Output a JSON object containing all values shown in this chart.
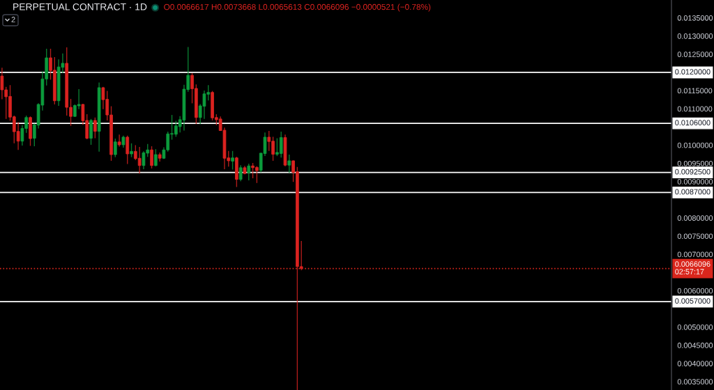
{
  "chart_data": {
    "type": "candlestick",
    "title": "PERPETUAL CONTRACT · 1D",
    "subtitle": "O0.0066617 H0.0073668 L0.0065613 C0.0066096 −0.0000521 (−0.78%)",
    "annotations": [
      "2"
    ],
    "categories": [
      null,
      null,
      null,
      null,
      null,
      null,
      null,
      null,
      null,
      null,
      null,
      null,
      null,
      null,
      null,
      null,
      null,
      null,
      null,
      null,
      null,
      null,
      null,
      null,
      null,
      null,
      null,
      null,
      null,
      null,
      null,
      null,
      null,
      null,
      null,
      null,
      null,
      null,
      null,
      null,
      null,
      null,
      null,
      null,
      null,
      null,
      null,
      null,
      null,
      null,
      null,
      null,
      null,
      null,
      null,
      null,
      null,
      null,
      null,
      null,
      null,
      null,
      null,
      null,
      null,
      null,
      null,
      null,
      null,
      null,
      null,
      null,
      null,
      null,
      null,
      null,
      null,
      null,
      null,
      null,
      null,
      null,
      null,
      null,
      null,
      null,
      null,
      null,
      null,
      null,
      null,
      null,
      null,
      null,
      null,
      null,
      null,
      null,
      null,
      null,
      null,
      null,
      null,
      null,
      null,
      null,
      null,
      null,
      null,
      null,
      null,
      null,
      null,
      null,
      null,
      null,
      null,
      null,
      null,
      null,
      null,
      null,
      null,
      null,
      null,
      null,
      null,
      null,
      null,
      null,
      null,
      null,
      null,
      null,
      null,
      null,
      null,
      null,
      null,
      null,
      null,
      null,
      null,
      null,
      null,
      null,
      null,
      null,
      null,
      null,
      null,
      null,
      null,
      null,
      null,
      null,
      null,
      null,
      null,
      null,
      null,
      null,
      null,
      null,
      null,
      null
    ],
    "ohlc": [
      [
        0.0119,
        0.01213,
        0.01126,
        0.01152
      ],
      [
        0.01152,
        0.0116,
        0.01072,
        0.01133
      ],
      [
        0.01134,
        0.01165,
        0.01067,
        0.01077
      ],
      [
        0.01078,
        0.01081,
        0.01005,
        0.01037
      ],
      [
        0.01038,
        0.01063,
        0.00987,
        0.01011
      ],
      [
        0.01011,
        0.01055,
        0.00999,
        0.01046
      ],
      [
        0.01046,
        0.01081,
        0.01034,
        0.01076
      ],
      [
        0.01076,
        0.01079,
        0.00998,
        0.01018
      ],
      [
        0.01019,
        0.01059,
        0.00997,
        0.01056
      ],
      [
        0.01055,
        0.01115,
        0.01046,
        0.01112
      ],
      [
        0.0111,
        0.01203,
        0.01095,
        0.01182
      ],
      [
        0.01182,
        0.01265,
        0.01164,
        0.0124
      ],
      [
        0.0124,
        0.01265,
        0.0118,
        0.01205
      ],
      [
        0.01206,
        0.01242,
        0.01112,
        0.01122
      ],
      [
        0.01122,
        0.01236,
        0.01108,
        0.01215
      ],
      [
        0.01214,
        0.01252,
        0.01198,
        0.01225
      ],
      [
        0.01225,
        0.01269,
        0.01081,
        0.01104
      ],
      [
        0.01104,
        0.01127,
        0.01053,
        0.01079
      ],
      [
        0.01079,
        0.01112,
        0.01078,
        0.01109
      ],
      [
        0.01108,
        0.01154,
        0.01099,
        0.01112
      ],
      [
        0.01112,
        0.01114,
        0.01056,
        0.01067
      ],
      [
        0.01068,
        0.01085,
        0.01016,
        0.01019
      ],
      [
        0.01019,
        0.01072,
        0.01001,
        0.01068
      ],
      [
        0.01068,
        0.01076,
        0.01019,
        0.01038
      ],
      [
        0.01038,
        0.01172,
        0.00982,
        0.01158
      ],
      [
        0.01158,
        0.0116,
        0.01099,
        0.01125
      ],
      [
        0.01126,
        0.01149,
        0.01068,
        0.01083
      ],
      [
        0.01083,
        0.01107,
        0.00957,
        0.00974
      ],
      [
        0.00974,
        0.01018,
        0.00967,
        0.01009
      ],
      [
        0.01009,
        0.01029,
        0.00996,
        0.01001
      ],
      [
        0.01001,
        0.01026,
        0.00993,
        0.01022
      ],
      [
        0.01022,
        0.01026,
        0.00948,
        0.00976
      ],
      [
        0.00976,
        0.01005,
        0.00967,
        0.00983
      ],
      [
        0.00983,
        0.01,
        0.00959,
        0.00963
      ],
      [
        0.00964,
        0.00995,
        0.00922,
        0.00944
      ],
      [
        0.00944,
        0.00983,
        0.00934,
        0.00979
      ],
      [
        0.00978,
        0.01003,
        0.00968,
        0.00987
      ],
      [
        0.00987,
        0.00997,
        0.00936,
        0.00944
      ],
      [
        0.00944,
        0.00989,
        0.00942,
        0.00974
      ],
      [
        0.00974,
        0.0098,
        0.00955,
        0.00964
      ],
      [
        0.00964,
        0.00994,
        0.00962,
        0.00987
      ],
      [
        0.00987,
        0.01037,
        0.00982,
        0.01031
      ],
      [
        0.0103,
        0.01083,
        0.01015,
        0.01032
      ],
      [
        0.0103,
        0.01067,
        0.01023,
        0.01053
      ],
      [
        0.01051,
        0.0108,
        0.01035,
        0.0107
      ],
      [
        0.01069,
        0.01166,
        0.0104,
        0.01154
      ],
      [
        0.01153,
        0.0127,
        0.01147,
        0.01192
      ],
      [
        0.01192,
        0.01198,
        0.01115,
        0.01155
      ],
      [
        0.01156,
        0.01167,
        0.01058,
        0.01076
      ],
      [
        0.01076,
        0.01113,
        0.01058,
        0.01108
      ],
      [
        0.01107,
        0.0115,
        0.01072,
        0.01141
      ],
      [
        0.0114,
        0.01165,
        0.01123,
        0.01145
      ],
      [
        0.01145,
        0.01149,
        0.01068,
        0.01075
      ],
      [
        0.01076,
        0.01085,
        0.01055,
        0.0107
      ],
      [
        0.01072,
        0.01079,
        0.01039,
        0.0104
      ],
      [
        0.01041,
        0.01048,
        0.00934,
        0.00964
      ],
      [
        0.00965,
        0.00984,
        0.00941,
        0.00957
      ],
      [
        0.00956,
        0.00984,
        0.00933,
        0.00965
      ],
      [
        0.00965,
        0.00968,
        0.00885,
        0.00906
      ],
      [
        0.00906,
        0.00945,
        0.00901,
        0.00938
      ],
      [
        0.00938,
        0.00943,
        0.0092,
        0.00922
      ],
      [
        0.00924,
        0.00949,
        0.00903,
        0.00943
      ],
      [
        0.00943,
        0.00951,
        0.00909,
        0.00938
      ],
      [
        0.00939,
        0.00942,
        0.00896,
        0.0093
      ],
      [
        0.00931,
        0.00979,
        0.00925,
        0.00978
      ],
      [
        0.00977,
        0.01035,
        0.0097,
        0.01022
      ],
      [
        0.01022,
        0.01039,
        0.00984,
        0.0101
      ],
      [
        0.01011,
        0.01023,
        0.00957,
        0.00975
      ],
      [
        0.00975,
        0.01019,
        0.0097,
        0.0098
      ],
      [
        0.00977,
        0.01037,
        0.00966,
        0.01021
      ],
      [
        0.01021,
        0.01029,
        0.00942,
        0.00945
      ],
      [
        0.00945,
        0.00974,
        0.00924,
        0.00957
      ],
      [
        0.00957,
        0.00958,
        0.00899,
        0.00925
      ],
      [
        0.00927,
        0.0094,
        0.00327,
        0.0066617
      ],
      [
        0.0066617,
        0.0073668,
        0.0065613,
        0.0066096
      ],
      null,
      null,
      null,
      null,
      null,
      null,
      null,
      null,
      null,
      null,
      null,
      null,
      null,
      null,
      null,
      null,
      null,
      null,
      null,
      null,
      null,
      null,
      null,
      null,
      null,
      null,
      null,
      null,
      null,
      null,
      null,
      null,
      null,
      null,
      null,
      null,
      null,
      null,
      null,
      null,
      null,
      null,
      null,
      null,
      null,
      null,
      null,
      null,
      null,
      null,
      null,
      null,
      null,
      null,
      null,
      null,
      null,
      null,
      null,
      null,
      null,
      null,
      null,
      null,
      null,
      null,
      null,
      null,
      null,
      null,
      null,
      null,
      null,
      null,
      null,
      null,
      null,
      null,
      null,
      null,
      null,
      null,
      null,
      null,
      null,
      null,
      null,
      null,
      null,
      null,
      null
    ],
    "colors": [
      "#db2320",
      "#db2320",
      "#db2320",
      "#db2320",
      "#db2320",
      "#0c9b3c",
      "#0c9b3c",
      "#db2320",
      "#0c9b3c",
      "#0c9b3c",
      "#0c9b3c",
      "#0c9b3c",
      "#db2320",
      "#db2320",
      "#0c9b3c",
      "#0c9b3c",
      "#db2320",
      "#db2320",
      "#0c9b3c",
      "#0c9b3c",
      "#db2320",
      "#db2320",
      "#0c9b3c",
      "#db2320",
      "#0c9b3c",
      "#db2320",
      "#db2320",
      "#db2320",
      "#0c9b3c",
      "#db2320",
      "#0c9b3c",
      "#db2320",
      "#0c9b3c",
      "#db2320",
      "#db2320",
      "#0c9b3c",
      "#0c9b3c",
      "#db2320",
      "#0c9b3c",
      "#db2320",
      "#0c9b3c",
      "#0c9b3c",
      "#0c9b3c",
      "#0c9b3c",
      "#0c9b3c",
      "#0c9b3c",
      "#0c9b3c",
      "#db2320",
      "#db2320",
      "#0c9b3c",
      "#0c9b3c",
      "#0c9b3c",
      "#db2320",
      "#db2320",
      "#db2320",
      "#db2320",
      "#db2320",
      "#0c9b3c",
      "#db2320",
      "#0c9b3c",
      "#db2320",
      "#0c9b3c",
      "#db2320",
      "#db2320",
      "#0c9b3c",
      "#0c9b3c",
      "#db2320",
      "#db2320",
      "#0c9b3c",
      "#0c9b3c",
      "#db2320",
      "#0c9b3c",
      "#db2320",
      "#db2320",
      "#db2320",
      null,
      null,
      null,
      null,
      null,
      null,
      null,
      null,
      null,
      null,
      null,
      null,
      null,
      null,
      null,
      null,
      null,
      null,
      null,
      null,
      null,
      null,
      null,
      null,
      null,
      null,
      null,
      null,
      null,
      null,
      null,
      null,
      null,
      null,
      null,
      null,
      null,
      null,
      null,
      null,
      null,
      null,
      null,
      null,
      null,
      null,
      null,
      null,
      null,
      null,
      null,
      null,
      null,
      null,
      null,
      null,
      null,
      null,
      null,
      null,
      null,
      null,
      null,
      null,
      null,
      null,
      null,
      null,
      null,
      null,
      null,
      null,
      null,
      null,
      null,
      null,
      null,
      null,
      null,
      null,
      null,
      null,
      null,
      null,
      null,
      null,
      null,
      null,
      null,
      null,
      null
    ],
    "ylim": [
      0.00327,
      0.01399
    ],
    "yticks": [
      {
        "value": 0.0035,
        "label": "0.0035000"
      },
      {
        "value": 0.004,
        "label": "0.0040000"
      },
      {
        "value": 0.0045,
        "label": "0.0045000"
      },
      {
        "value": 0.005,
        "label": "0.0050000"
      },
      {
        "value": 0.006,
        "label": "0.0060000"
      },
      {
        "value": 0.007,
        "label": "0.0070000"
      },
      {
        "value": 0.0075,
        "label": "0.0075000"
      },
      {
        "value": 0.008,
        "label": "0.0080000"
      },
      {
        "value": 0.009,
        "label": "0.0090000"
      },
      {
        "value": 0.0095,
        "label": "0.0095000"
      },
      {
        "value": 0.01,
        "label": "0.0100000"
      },
      {
        "value": 0.011,
        "label": "0.0110000"
      },
      {
        "value": 0.0115,
        "label": "0.0115000"
      },
      {
        "value": 0.0125,
        "label": "0.0125000"
      },
      {
        "value": 0.013,
        "label": "0.0130000"
      },
      {
        "value": 0.0135,
        "label": "0.0135000"
      }
    ],
    "tick_labels": "y",
    "ref_lines": [
      {
        "axis": "y",
        "value": 0.012,
        "label": "0.0120000",
        "color": "#ffffff",
        "line_style": "solid"
      },
      {
        "axis": "y",
        "value": 0.0106,
        "label": "0.0106000",
        "color": "#ffffff",
        "line_style": "solid"
      },
      {
        "axis": "y",
        "value": 0.00925,
        "label": "0.0092500",
        "color": "#ffffff",
        "line_style": "solid"
      },
      {
        "axis": "y",
        "value": 0.0087,
        "label": "0.0087000",
        "color": "#ffffff",
        "line_style": "solid"
      },
      {
        "axis": "y",
        "value": 0.0066096,
        "label": "0.0066096\n02:57:17",
        "color": "#d9261c",
        "line_style": "dotted"
      },
      {
        "axis": "y",
        "value": 0.0057,
        "label": "0.0057000",
        "color": "#ffffff",
        "line_style": "solid"
      }
    ]
  }
}
